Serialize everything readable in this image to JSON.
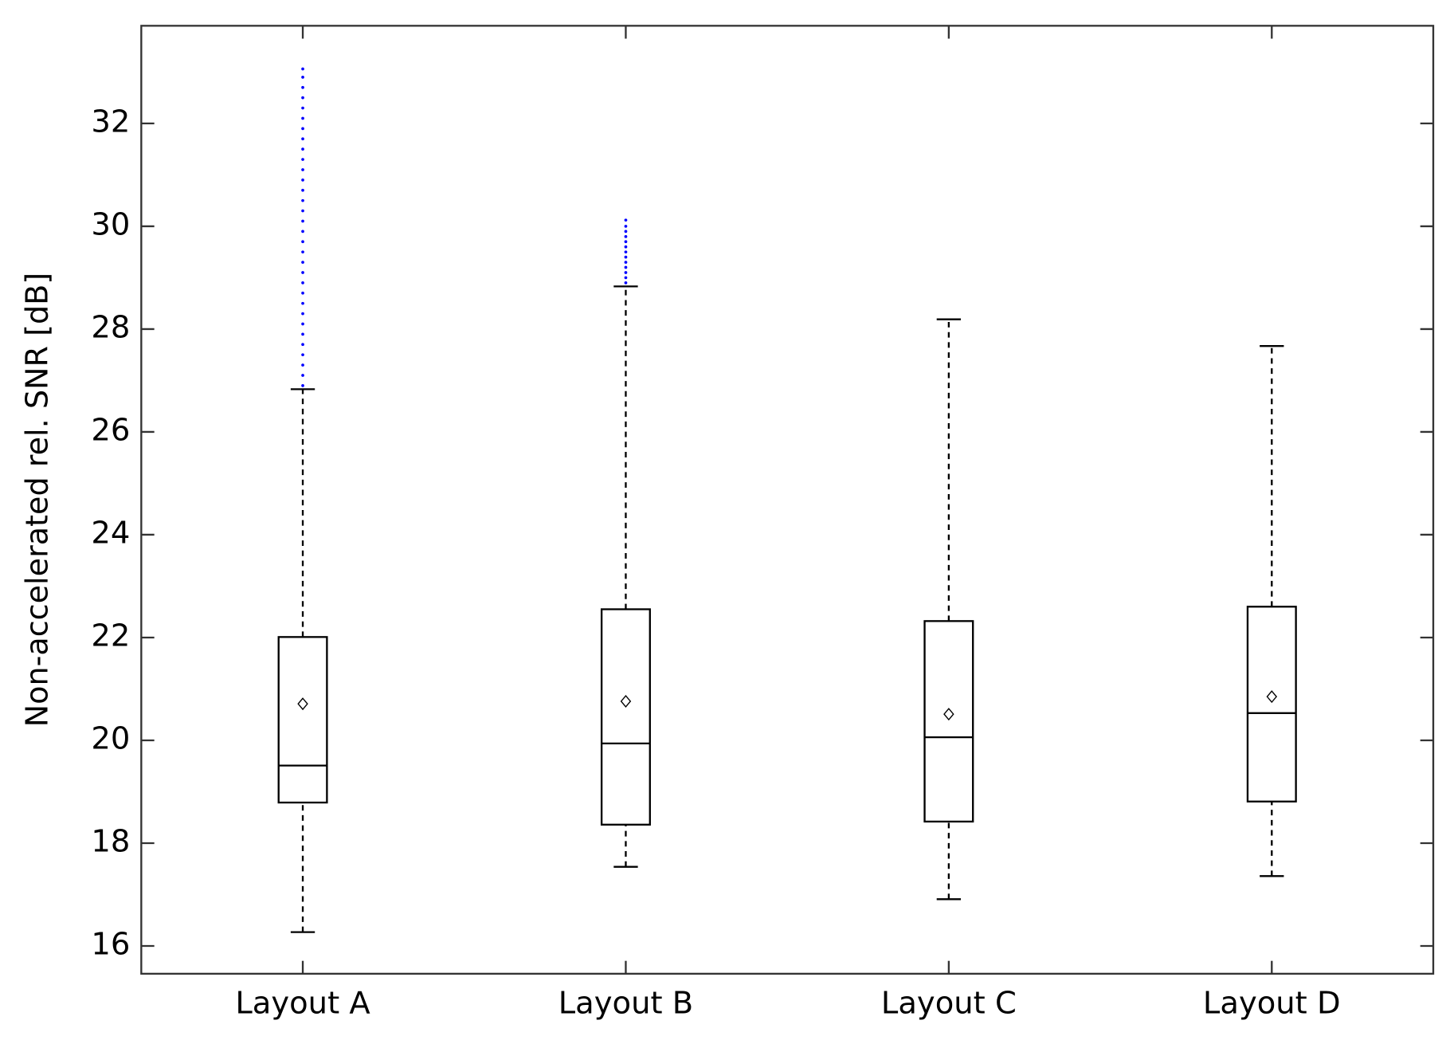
{
  "chart_data": {
    "type": "box",
    "y_label": "Non-accelerated rel. SNR [dB]",
    "categories": [
      "Layout A",
      "Layout B",
      "Layout C",
      "Layout D"
    ],
    "ylim": [
      15.46,
      33.9
    ],
    "yticks": [
      16,
      18,
      20,
      22,
      24,
      26,
      28,
      30,
      32
    ],
    "box_color": "#000000",
    "outlier_color": "#0000ff",
    "boxes": [
      {
        "whislo": 16.27,
        "q1": 18.79,
        "med": 19.51,
        "q3": 22.01,
        "whishi": 26.83,
        "mean": 20.71,
        "outliers": [
          26.9,
          27.1,
          27.3,
          27.5,
          27.7,
          27.9,
          28.1,
          28.3,
          28.5,
          28.7,
          28.9,
          29.1,
          29.3,
          29.5,
          29.7,
          29.9,
          30.1,
          30.3,
          30.5,
          30.7,
          30.9,
          31.1,
          31.3,
          31.5,
          31.7,
          31.9,
          32.1,
          32.3,
          32.5,
          32.7,
          32.9,
          33.06
        ]
      },
      {
        "whislo": 17.54,
        "q1": 18.36,
        "med": 19.94,
        "q3": 22.55,
        "whishi": 28.83,
        "mean": 20.76,
        "outliers": [
          28.9,
          29.0,
          29.1,
          29.2,
          29.3,
          29.4,
          29.5,
          29.6,
          29.7,
          29.8,
          29.9,
          30.0,
          30.12
        ]
      },
      {
        "whislo": 16.91,
        "q1": 18.42,
        "med": 20.06,
        "q3": 22.32,
        "whishi": 28.19,
        "mean": 20.51,
        "outliers": []
      },
      {
        "whislo": 17.36,
        "q1": 18.81,
        "med": 20.53,
        "q3": 22.6,
        "whishi": 27.67,
        "mean": 20.85,
        "outliers": []
      }
    ]
  }
}
